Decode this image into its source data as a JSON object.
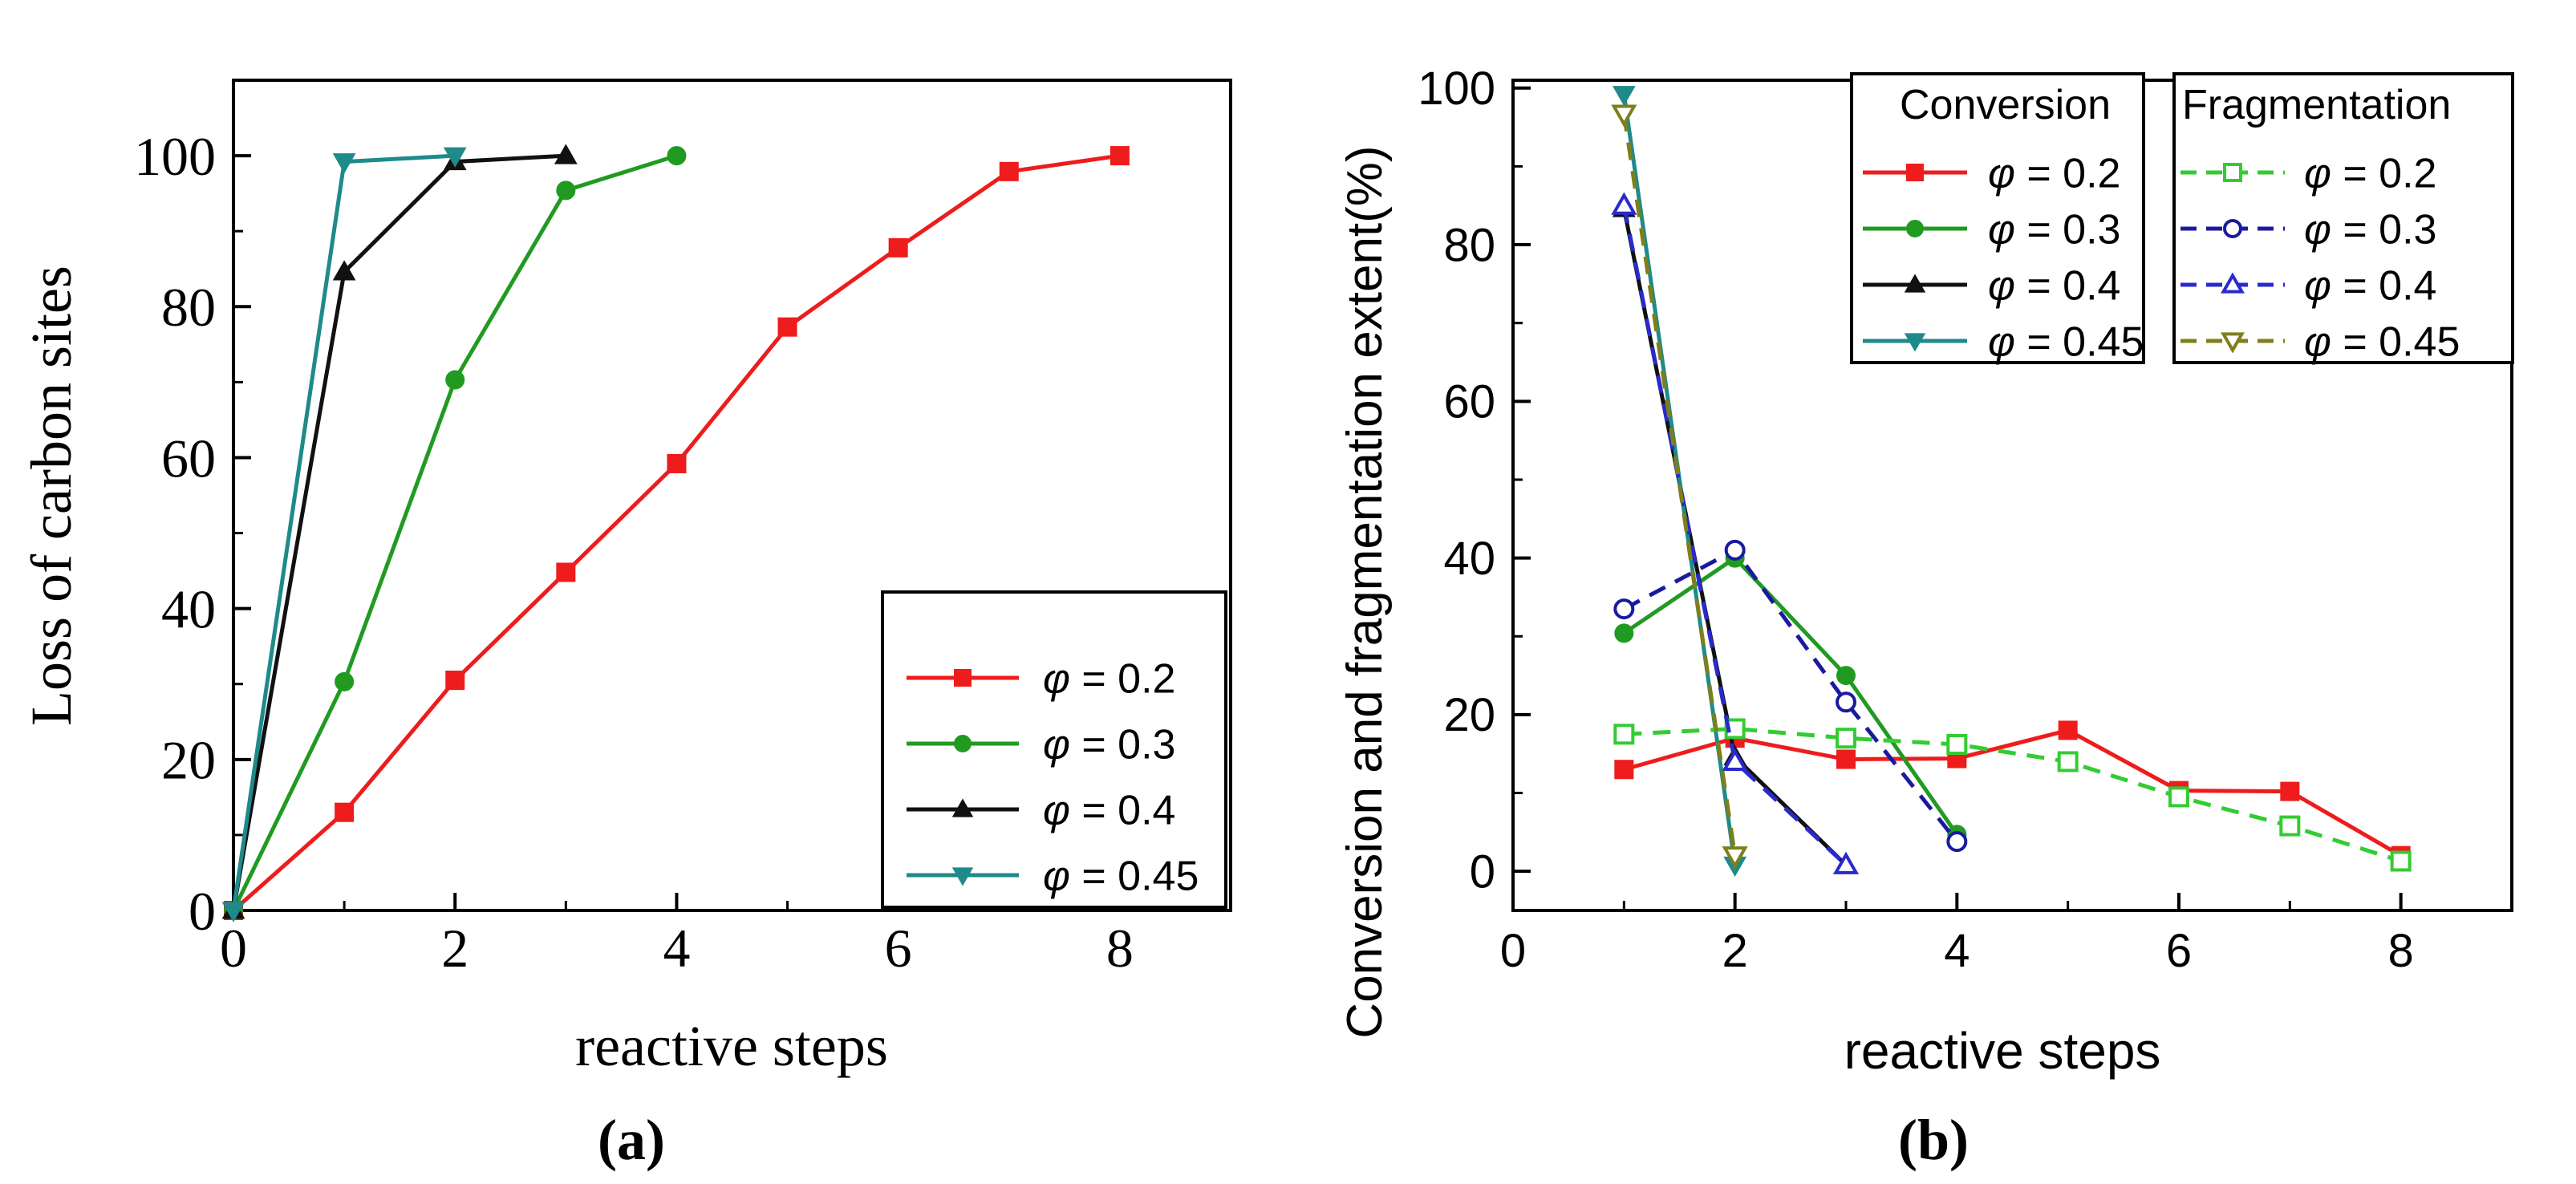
{
  "chart_data": [
    {
      "type": "line",
      "panel_label": "(a)",
      "title": "",
      "xlabel": "reactive steps",
      "ylabel": "Loss of carbon sites",
      "xlim": [
        0,
        9
      ],
      "ylim": [
        0,
        110
      ],
      "xticks": [
        "0",
        "2",
        "4",
        "6",
        "8"
      ],
      "yticks": [
        "0",
        "20",
        "40",
        "60",
        "80",
        "100"
      ],
      "legend_position": "lower-right",
      "series": [
        {
          "name": "φ = 0.2",
          "prefix": "φ",
          "rest": " = 0.2",
          "color": "#ee1c1c",
          "marker": "square",
          "filled": true,
          "dash": false,
          "x": [
            0,
            1,
            2,
            3,
            4,
            5,
            6,
            7,
            8
          ],
          "y": [
            0,
            13,
            30.5,
            44.8,
            59.2,
            77.3,
            87.8,
            97.9,
            100
          ]
        },
        {
          "name": "φ = 0.3",
          "prefix": "φ",
          "rest": " = 0.3",
          "color": "#219a21",
          "marker": "circle",
          "filled": true,
          "dash": false,
          "x": [
            0,
            1,
            2,
            3,
            4
          ],
          "y": [
            0,
            30.3,
            70.3,
            95.4,
            100
          ]
        },
        {
          "name": "φ = 0.4",
          "prefix": "φ",
          "rest": " = 0.4",
          "color": "#111111",
          "marker": "triangle-up",
          "filled": true,
          "dash": false,
          "x": [
            0,
            1,
            2,
            3
          ],
          "y": [
            0,
            84.6,
            99.2,
            100
          ]
        },
        {
          "name": "φ = 0.45",
          "prefix": "φ",
          "rest": " = 0.45",
          "color": "#1f8a8a",
          "marker": "triangle-down",
          "filled": true,
          "dash": false,
          "x": [
            0,
            1,
            2
          ],
          "y": [
            0,
            99.2,
            100
          ]
        }
      ]
    },
    {
      "type": "line",
      "panel_label": "(b)",
      "title": "",
      "xlabel": "reactive steps",
      "ylabel": "Conversion and fragmentation extent(%)",
      "xlim": [
        0,
        9
      ],
      "ylim": [
        -5,
        101
      ],
      "xticks": [
        "0",
        "2",
        "4",
        "6",
        "8"
      ],
      "yticks": [
        "0",
        "20",
        "40",
        "60",
        "80",
        "100"
      ],
      "legend_position": "top-right",
      "legend_titles": [
        "Conversion",
        "Fragmentation"
      ],
      "series": [
        {
          "name": "φ = 0.2",
          "group": "Conversion",
          "prefix": "φ",
          "rest": " = 0.2",
          "color": "#ee1c1c",
          "marker": "square",
          "filled": true,
          "dash": false,
          "x": [
            1,
            2,
            3,
            4,
            5,
            6,
            7,
            8
          ],
          "y": [
            13,
            17,
            14.3,
            14.4,
            18,
            10.3,
            10.2,
            2
          ]
        },
        {
          "name": "φ = 0.3",
          "group": "Conversion",
          "prefix": "φ",
          "rest": " = 0.3",
          "color": "#219a21",
          "marker": "circle",
          "filled": true,
          "dash": false,
          "x": [
            1,
            2,
            3,
            4
          ],
          "y": [
            30.4,
            40,
            25,
            4.7
          ]
        },
        {
          "name": "φ = 0.4",
          "group": "Conversion",
          "prefix": "φ",
          "rest": " = 0.4",
          "color": "#111111",
          "marker": "triangle-up",
          "filled": true,
          "dash": false,
          "x": [
            1,
            2,
            3
          ],
          "y": [
            84.6,
            14.6,
            0.8
          ]
        },
        {
          "name": "φ = 0.45",
          "group": "Conversion",
          "prefix": "φ",
          "rest": " = 0.45",
          "color": "#1f8a8a",
          "marker": "triangle-down",
          "filled": true,
          "dash": false,
          "x": [
            1,
            2
          ],
          "y": [
            99.2,
            0.8
          ]
        },
        {
          "name": "φ = 0.2",
          "group": "Fragmentation",
          "prefix": "φ",
          "rest": " = 0.2",
          "color": "#33cc33",
          "marker": "square",
          "filled": false,
          "dash": true,
          "x": [
            1,
            2,
            3,
            4,
            5,
            6,
            7,
            8
          ],
          "y": [
            17.5,
            18.2,
            17,
            16.2,
            14,
            9.5,
            5.8,
            1.3
          ]
        },
        {
          "name": "φ = 0.3",
          "group": "Fragmentation",
          "prefix": "φ",
          "rest": " = 0.3",
          "color": "#1a1aa0",
          "marker": "circle",
          "filled": false,
          "dash": true,
          "x": [
            1,
            2,
            3,
            4
          ],
          "y": [
            33.5,
            41,
            21.6,
            3.8
          ]
        },
        {
          "name": "φ = 0.4",
          "group": "Fragmentation",
          "prefix": "φ",
          "rest": " = 0.4",
          "color": "#2a2acc",
          "marker": "triangle-up",
          "filled": false,
          "dash": true,
          "x": [
            1,
            2,
            3
          ],
          "y": [
            85,
            14,
            0.8
          ]
        },
        {
          "name": "φ = 0.45",
          "group": "Fragmentation",
          "prefix": "φ",
          "rest": " = 0.45",
          "color": "#7f7f1a",
          "marker": "triangle-down",
          "filled": false,
          "dash": true,
          "x": [
            1,
            2
          ],
          "y": [
            96.7,
            2
          ]
        }
      ]
    }
  ]
}
